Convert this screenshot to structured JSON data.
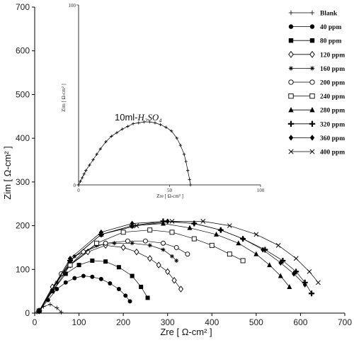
{
  "chart_data": {
    "type": "scatter",
    "xlabel": "Zre [ Ω-cm² ]",
    "ylabel": "Zim [ Ω-cm² ]",
    "xlim": [
      0,
      700
    ],
    "ylim": [
      0,
      700
    ],
    "xticks": [
      "0",
      "100",
      "200",
      "300",
      "400",
      "500",
      "600",
      "700"
    ],
    "yticks": [
      "0",
      "100",
      "200",
      "300",
      "400",
      "500",
      "600",
      "700"
    ],
    "legend_position": "right",
    "series": [
      {
        "name": "Blank",
        "marker": "plus-line",
        "x": [
          5,
          20,
          35,
          50,
          60
        ],
        "y": [
          2,
          15,
          20,
          12,
          2
        ]
      },
      {
        "name": "40 ppm",
        "marker": "circle-filled",
        "x": [
          10,
          30,
          50,
          70,
          90,
          110,
          130,
          150,
          170,
          190,
          205,
          215
        ],
        "y": [
          5,
          30,
          55,
          70,
          80,
          85,
          83,
          78,
          68,
          55,
          40,
          27
        ]
      },
      {
        "name": "80 ppm",
        "marker": "square-filled",
        "x": [
          10,
          40,
          70,
          100,
          130,
          160,
          190,
          220,
          240,
          255
        ],
        "y": [
          5,
          50,
          90,
          110,
          120,
          118,
          105,
          85,
          60,
          35
        ]
      },
      {
        "name": "120 ppm",
        "marker": "diamond-open",
        "x": [
          10,
          40,
          80,
          120,
          160,
          200,
          230,
          260,
          280,
          300,
          315,
          330
        ],
        "y": [
          5,
          60,
          110,
          140,
          155,
          150,
          140,
          125,
          110,
          95,
          75,
          55
        ]
      },
      {
        "name": "160 ppm",
        "marker": "asterisk",
        "x": [
          10,
          50,
          90,
          140,
          180,
          220,
          260,
          290,
          310,
          320
        ],
        "y": [
          5,
          70,
          130,
          155,
          160,
          160,
          155,
          145,
          130,
          120
        ]
      },
      {
        "name": "200 ppm",
        "marker": "circle-open",
        "x": [
          10,
          60,
          110,
          160,
          210,
          250,
          290,
          320,
          345
        ],
        "y": [
          5,
          90,
          140,
          160,
          165,
          165,
          160,
          150,
          135
        ]
      },
      {
        "name": "240 ppm",
        "marker": "square-open",
        "x": [
          10,
          80,
          140,
          200,
          260,
          310,
          360,
          400,
          440,
          470
        ],
        "y": [
          5,
          110,
          160,
          185,
          190,
          185,
          170,
          155,
          135,
          120
        ]
      },
      {
        "name": "280 ppm",
        "marker": "triangle-filled",
        "x": [
          10,
          80,
          150,
          220,
          290,
          350,
          410,
          460,
          500,
          530,
          555,
          575
        ],
        "y": [
          5,
          120,
          180,
          200,
          205,
          195,
          180,
          160,
          135,
          110,
          85,
          60
        ]
      },
      {
        "name": "320 ppm",
        "marker": "plus-bold",
        "x": [
          10,
          80,
          150,
          220,
          290,
          360,
          420,
          470,
          520,
          560,
          590,
          610,
          625
        ],
        "y": [
          5,
          120,
          180,
          200,
          210,
          205,
          190,
          170,
          145,
          120,
          95,
          70,
          45
        ]
      },
      {
        "name": "360 ppm",
        "marker": "diamond-filled",
        "x": [
          10,
          80,
          150,
          220,
          300,
          360,
          420,
          470,
          515,
          555,
          585,
          610
        ],
        "y": [
          5,
          125,
          185,
          205,
          210,
          205,
          190,
          170,
          145,
          115,
          90,
          65
        ]
      },
      {
        "name": "400 ppm",
        "marker": "x",
        "x": [
          10,
          80,
          150,
          230,
          310,
          380,
          440,
          500,
          550,
          590,
          620,
          640
        ],
        "y": [
          5,
          120,
          180,
          200,
          210,
          210,
          200,
          180,
          155,
          125,
          95,
          70
        ]
      }
    ],
    "inset": {
      "annotation_prefix": "10ml-",
      "annotation_formula": "H₂SO₄",
      "xlabel": "Zre [ Ω-cm² ]",
      "ylabel": "Zim [ Ω-cm² ]",
      "xlim": [
        0,
        100
      ],
      "ylim": [
        0,
        100
      ],
      "xticks": [
        "0",
        "50",
        "100"
      ],
      "yticks": [
        "0",
        "100"
      ],
      "series": [
        {
          "name": "10ml-H2SO4",
          "x": [
            0,
            1,
            2,
            3,
            4,
            6,
            8,
            10,
            12,
            15,
            18,
            21,
            24,
            27,
            30,
            33,
            36,
            39,
            42,
            45,
            48,
            51,
            54,
            56,
            58,
            59,
            60,
            61,
            61.5
          ],
          "y": [
            0,
            2,
            4,
            6,
            8,
            11,
            14,
            17,
            20,
            24,
            27,
            29,
            31,
            32.5,
            34,
            34.5,
            35,
            35,
            34.5,
            33.5,
            32,
            30,
            26,
            22,
            17,
            13,
            8,
            3,
            0
          ]
        }
      ]
    }
  }
}
